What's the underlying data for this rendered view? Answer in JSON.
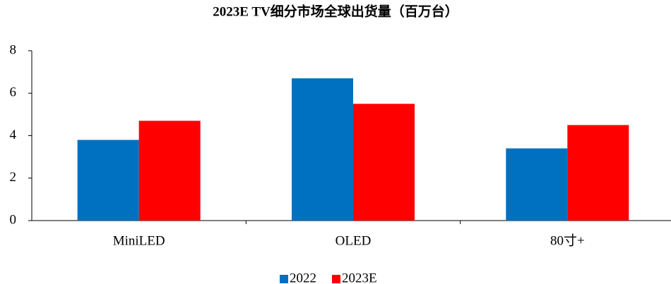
{
  "chart_data": {
    "type": "bar",
    "title": "2023E TV细分市场全球出货量（百万台）",
    "categories": [
      "MiniLED",
      "OLED",
      "80寸+"
    ],
    "series": [
      {
        "name": "2022",
        "color": "#0070c0",
        "values": [
          3.8,
          6.7,
          3.4
        ]
      },
      {
        "name": "2023E",
        "color": "#ff0000",
        "values": [
          4.7,
          5.5,
          4.5
        ]
      }
    ],
    "ylim": [
      0,
      8
    ],
    "yticks": [
      0,
      2,
      4,
      6,
      8
    ],
    "grid": false,
    "legend": "bottom"
  }
}
